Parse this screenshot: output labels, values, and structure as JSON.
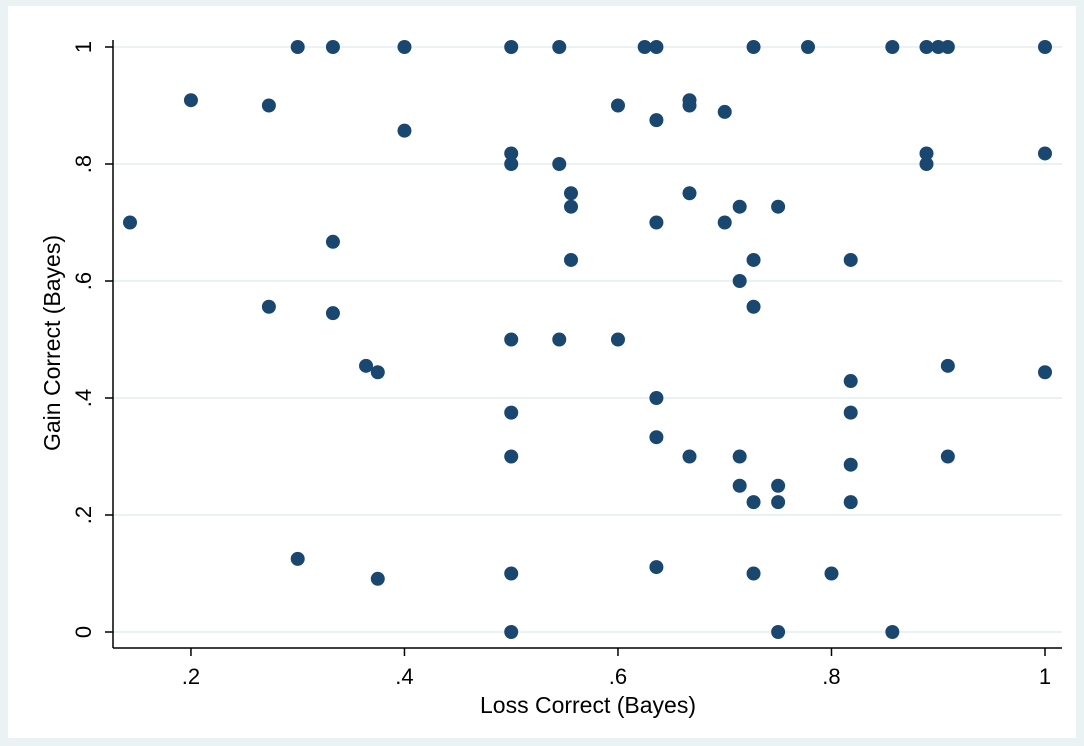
{
  "chart_data": {
    "type": "scatter",
    "title": "",
    "xlabel": "Loss Correct (Bayes)",
    "ylabel": "Gain Correct (Bayes)",
    "xlim": [
      0.1429,
      1.0
    ],
    "ylim": [
      0.0,
      1.0
    ],
    "x_ticks": [
      0.2,
      0.4,
      0.6,
      0.8,
      1.0
    ],
    "x_tick_labels": [
      ".2",
      ".4",
      ".6",
      ".8",
      "1"
    ],
    "y_ticks": [
      0.0,
      0.2,
      0.4,
      0.6,
      0.8,
      1.0
    ],
    "y_tick_labels": [
      "0",
      ".2",
      ".4",
      ".6",
      ".8",
      "1"
    ],
    "grid": "horizontal",
    "marker_color": "#1a476f",
    "plot_background": "#ffffff",
    "outer_background": "#eaf2f3",
    "points": [
      [
        0.3,
        1.0
      ],
      [
        0.333,
        1.0
      ],
      [
        0.4,
        1.0
      ],
      [
        0.5,
        1.0
      ],
      [
        0.545,
        1.0
      ],
      [
        0.625,
        1.0
      ],
      [
        0.636,
        1.0
      ],
      [
        0.727,
        1.0
      ],
      [
        0.778,
        1.0
      ],
      [
        0.857,
        1.0
      ],
      [
        0.889,
        1.0
      ],
      [
        0.9,
        1.0
      ],
      [
        0.909,
        1.0
      ],
      [
        1.0,
        1.0
      ],
      [
        0.2,
        0.909
      ],
      [
        0.273,
        0.9
      ],
      [
        0.6,
        0.9
      ],
      [
        0.667,
        0.909
      ],
      [
        0.667,
        0.9
      ],
      [
        0.7,
        0.889
      ],
      [
        0.636,
        0.875
      ],
      [
        0.4,
        0.857
      ],
      [
        0.5,
        0.818
      ],
      [
        0.5,
        0.8
      ],
      [
        0.545,
        0.8
      ],
      [
        0.889,
        0.818
      ],
      [
        0.889,
        0.8
      ],
      [
        1.0,
        0.818
      ],
      [
        0.556,
        0.75
      ],
      [
        0.556,
        0.727
      ],
      [
        0.667,
        0.75
      ],
      [
        0.714,
        0.727
      ],
      [
        0.75,
        0.727
      ],
      [
        0.1429,
        0.7
      ],
      [
        0.636,
        0.7
      ],
      [
        0.7,
        0.7
      ],
      [
        0.333,
        0.667
      ],
      [
        0.556,
        0.636
      ],
      [
        0.727,
        0.636
      ],
      [
        0.818,
        0.636
      ],
      [
        0.714,
        0.6
      ],
      [
        0.273,
        0.556
      ],
      [
        0.727,
        0.556
      ],
      [
        0.333,
        0.545
      ],
      [
        0.5,
        0.5
      ],
      [
        0.545,
        0.5
      ],
      [
        0.6,
        0.5
      ],
      [
        0.364,
        0.455
      ],
      [
        0.375,
        0.444
      ],
      [
        0.909,
        0.455
      ],
      [
        1.0,
        0.444
      ],
      [
        0.818,
        0.429
      ],
      [
        0.636,
        0.4
      ],
      [
        0.5,
        0.375
      ],
      [
        0.818,
        0.375
      ],
      [
        0.636,
        0.333
      ],
      [
        0.5,
        0.3
      ],
      [
        0.667,
        0.3
      ],
      [
        0.714,
        0.3
      ],
      [
        0.909,
        0.3
      ],
      [
        0.818,
        0.286
      ],
      [
        0.714,
        0.25
      ],
      [
        0.75,
        0.25
      ],
      [
        0.727,
        0.222
      ],
      [
        0.75,
        0.222
      ],
      [
        0.818,
        0.222
      ],
      [
        0.3,
        0.125
      ],
      [
        0.636,
        0.111
      ],
      [
        0.5,
        0.1
      ],
      [
        0.727,
        0.1
      ],
      [
        0.8,
        0.1
      ],
      [
        0.375,
        0.091
      ],
      [
        0.5,
        0.0
      ],
      [
        0.75,
        0.0
      ],
      [
        0.857,
        0.0
      ]
    ]
  }
}
